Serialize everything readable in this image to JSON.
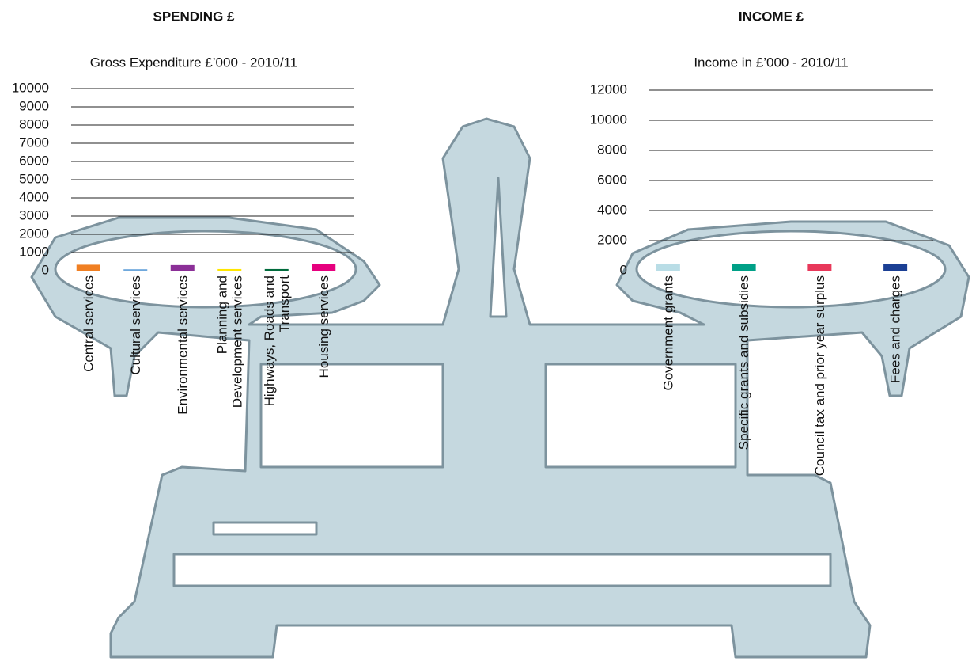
{
  "chart_data": [
    {
      "type": "bar",
      "heading": "SPENDING £",
      "title": "Gross Expenditure £’000 - 2010/11",
      "categories": [
        "Central services",
        "Cultural services",
        "Environmental services",
        "Planning and Development services",
        "Highways, Roads and Transport",
        "Housing services"
      ],
      "values": [
        330,
        80,
        310,
        90,
        90,
        350
      ],
      "colors": [
        "#f07f22",
        "#6fa8dc",
        "#8b2f97",
        "#ffe600",
        "#006b3c",
        "#e6007e"
      ],
      "ylim": [
        0,
        10000
      ],
      "yticks": [
        0,
        1000,
        2000,
        3000,
        4000,
        5000,
        6000,
        7000,
        8000,
        9000,
        10000
      ],
      "grid": true
    },
    {
      "type": "bar",
      "heading": "INCOME £",
      "title": "Income in £’000 - 2010/11",
      "categories": [
        "Government grants",
        "Specific grants and subsidies",
        "Council tax and prior year surplus",
        "Fees and charges"
      ],
      "values": [
        430,
        430,
        440,
        430
      ],
      "colors": [
        "#b9dde6",
        "#00a087",
        "#e8385a",
        "#1b3f94"
      ],
      "ylim": [
        0,
        12000
      ],
      "yticks": [
        0,
        2000,
        4000,
        6000,
        8000,
        10000,
        12000
      ],
      "grid": true
    }
  ]
}
